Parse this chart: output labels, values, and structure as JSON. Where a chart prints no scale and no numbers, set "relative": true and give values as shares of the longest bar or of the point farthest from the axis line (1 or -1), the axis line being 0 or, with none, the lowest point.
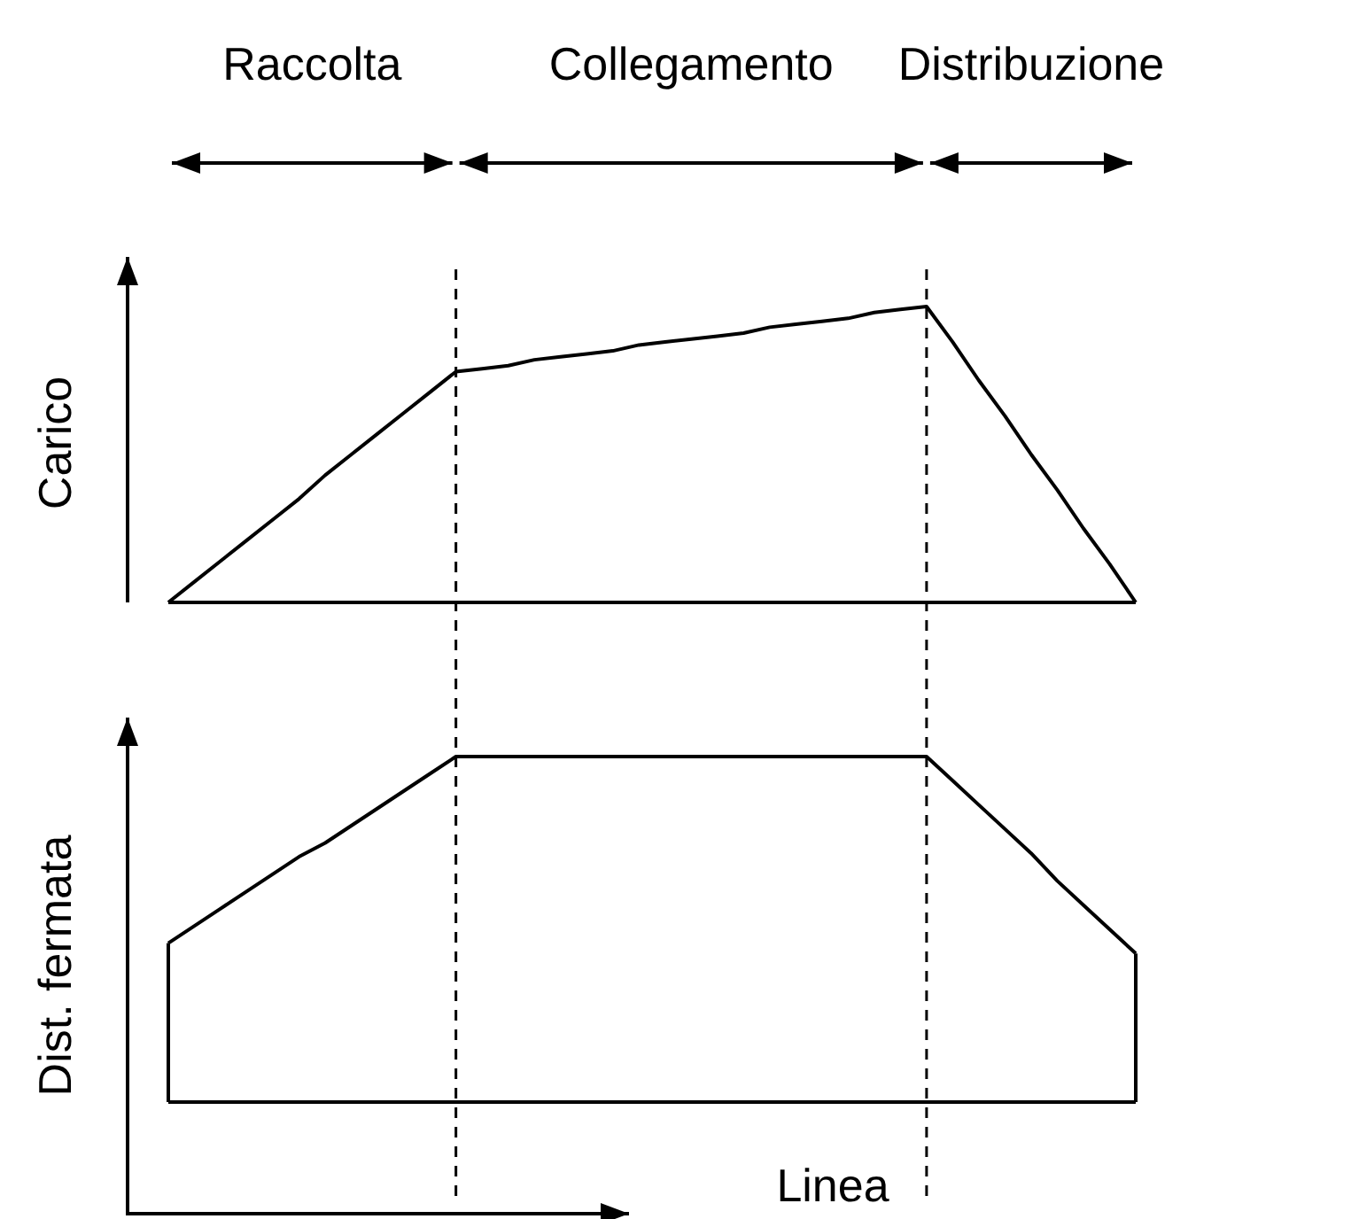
{
  "chart_data": [
    {
      "type": "line",
      "ylabel": "Carico",
      "relative": true,
      "annotations": [
        "Raccolta",
        "Collegamento",
        "Distribuzione"
      ],
      "categories": [
        null,
        null,
        null,
        null,
        null,
        null,
        null,
        null,
        null,
        null,
        null,
        null,
        null,
        null,
        null,
        null,
        null,
        null,
        null,
        null,
        null,
        null,
        null,
        null,
        null,
        null,
        null,
        null,
        null,
        null,
        null,
        null,
        null,
        null,
        null,
        null,
        null,
        null
      ],
      "series": [
        {
          "color": "#000000",
          "values": [
            0,
            0.07,
            0.14,
            0.21,
            0.28,
            0.35,
            0.43,
            0.5,
            0.57,
            0.64,
            0.71,
            0.78,
            0.79,
            0.8,
            0.82,
            0.83,
            0.84,
            0.85,
            0.87,
            0.88,
            0.89,
            0.9,
            0.91,
            0.93,
            0.94,
            0.95,
            0.96,
            0.98,
            0.99,
            1,
            0.88,
            0.75,
            0.63,
            0.5,
            0.38,
            0.25,
            0.13,
            0
          ]
        }
      ],
      "ref_lines": [
        {
          "axis": "y",
          "value": 0
        }
      ]
    },
    {
      "type": "line",
      "ylabel": "Dist. fermata",
      "xlabel": "Linea",
      "relative": true,
      "categories": [
        null,
        null,
        null,
        null,
        null,
        null,
        null,
        null,
        null,
        null,
        null,
        null,
        null,
        null,
        null,
        null,
        null,
        null,
        null,
        null,
        null,
        null,
        null,
        null,
        null,
        null,
        null,
        null,
        null,
        null,
        null,
        null,
        null,
        null,
        null,
        null,
        null,
        null
      ],
      "series": [
        {
          "color": "#000000",
          "values": [
            0.46,
            0.51,
            0.56,
            0.61,
            0.66,
            0.71,
            0.75,
            0.8,
            0.85,
            0.9,
            0.95,
            1,
            1,
            1,
            1,
            1,
            1,
            1,
            1,
            1,
            1,
            1,
            1,
            1,
            1,
            1,
            1,
            1,
            1,
            1,
            0.93,
            0.86,
            0.79,
            0.72,
            0.64,
            0.57,
            0.5,
            0.43
          ]
        }
      ],
      "ref_lines": [
        {
          "axis": "y",
          "value": 0
        }
      ]
    }
  ]
}
